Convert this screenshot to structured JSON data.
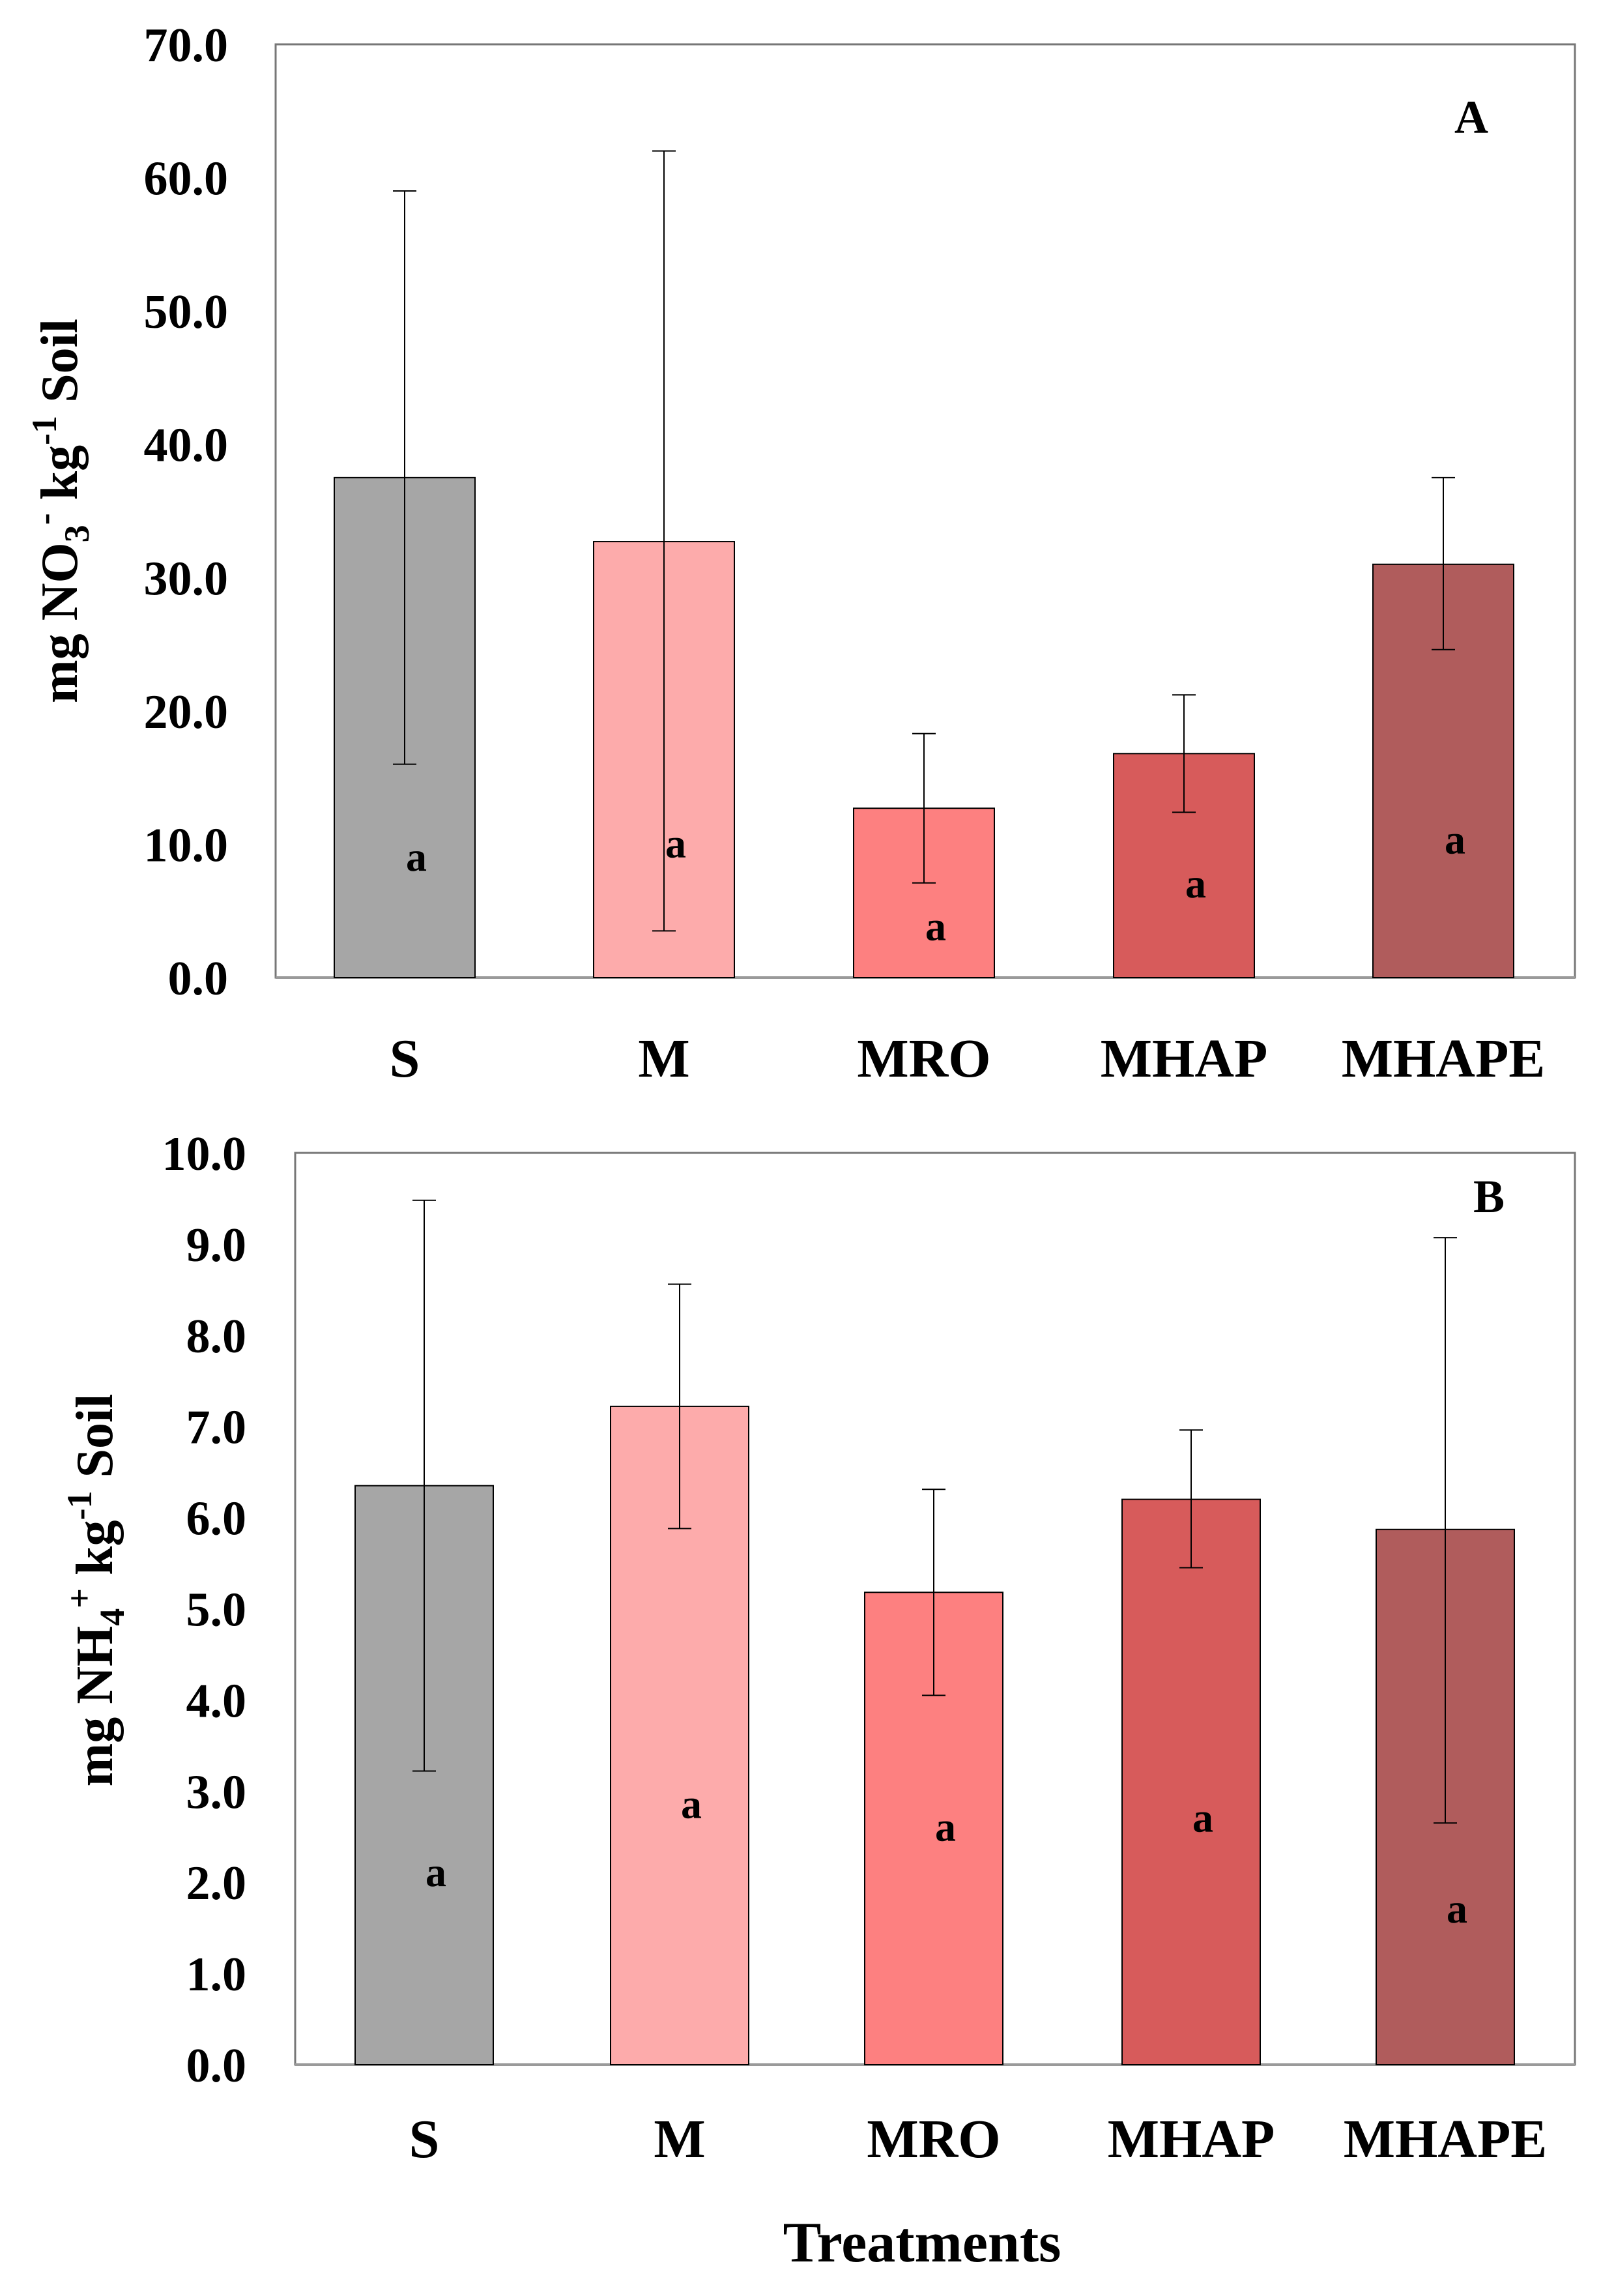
{
  "chart_data": [
    {
      "type": "bar",
      "panel_label": "A",
      "title": "",
      "ylabel": {
        "prefix": "mg NO",
        "sub": "3",
        "sup": "-",
        "mid": " kg",
        "sup2": "-1",
        "suffix": " Soil"
      },
      "xlabel": "",
      "ylim": [
        0,
        70
      ],
      "yticks": [
        "0.0",
        "10.0",
        "20.0",
        "30.0",
        "40.0",
        "50.0",
        "60.0",
        "70.0"
      ],
      "ytick_values": [
        0,
        10,
        20,
        30,
        40,
        50,
        60,
        70
      ],
      "categories": [
        "S",
        "M",
        "MRO",
        "MHAP",
        "MHAPE"
      ],
      "values": [
        37.5,
        32.7,
        12.7,
        16.8,
        31.0
      ],
      "error_low": [
        16.0,
        3.5,
        7.1,
        12.4,
        24.6
      ],
      "error_high": [
        59.0,
        62.0,
        18.3,
        21.2,
        37.5
      ],
      "significance": [
        "a",
        "a",
        "a",
        "a",
        "a"
      ],
      "sig_y": [
        9.0,
        10.0,
        3.8,
        7.0,
        10.3
      ],
      "colors": [
        "#a6a6a6",
        "#fdabab",
        "#fd8080",
        "#d75b5b",
        "#b05c5c"
      ],
      "grid": false
    },
    {
      "type": "bar",
      "panel_label": "B",
      "title": "",
      "ylabel": {
        "prefix": "mg NH",
        "sub": "4",
        "sup": "+",
        "mid": " kg",
        "sup2": "-1",
        "suffix": " Soil"
      },
      "xlabel": "Treatments",
      "ylim": [
        0,
        10
      ],
      "yticks": [
        "0.0",
        "1.0",
        "2.0",
        "3.0",
        "4.0",
        "5.0",
        "6.0",
        "7.0",
        "8.0",
        "9.0",
        "10.0"
      ],
      "ytick_values": [
        0,
        1,
        2,
        3,
        4,
        5,
        6,
        7,
        8,
        9,
        10
      ],
      "categories": [
        "S",
        "M",
        "MRO",
        "MHAP",
        "MHAPE"
      ],
      "values": [
        6.35,
        7.22,
        5.18,
        6.2,
        5.87
      ],
      "error_low": [
        3.22,
        5.88,
        4.05,
        5.45,
        2.65
      ],
      "error_high": [
        9.48,
        8.56,
        6.31,
        6.96,
        9.07
      ],
      "significance": [
        "a",
        "a",
        "a",
        "a",
        "a"
      ],
      "sig_y": [
        2.1,
        2.85,
        2.6,
        2.7,
        1.7
      ],
      "colors": [
        "#a6a6a6",
        "#fdabab",
        "#fd8080",
        "#d75b5b",
        "#b05c5c"
      ],
      "grid": false
    }
  ]
}
